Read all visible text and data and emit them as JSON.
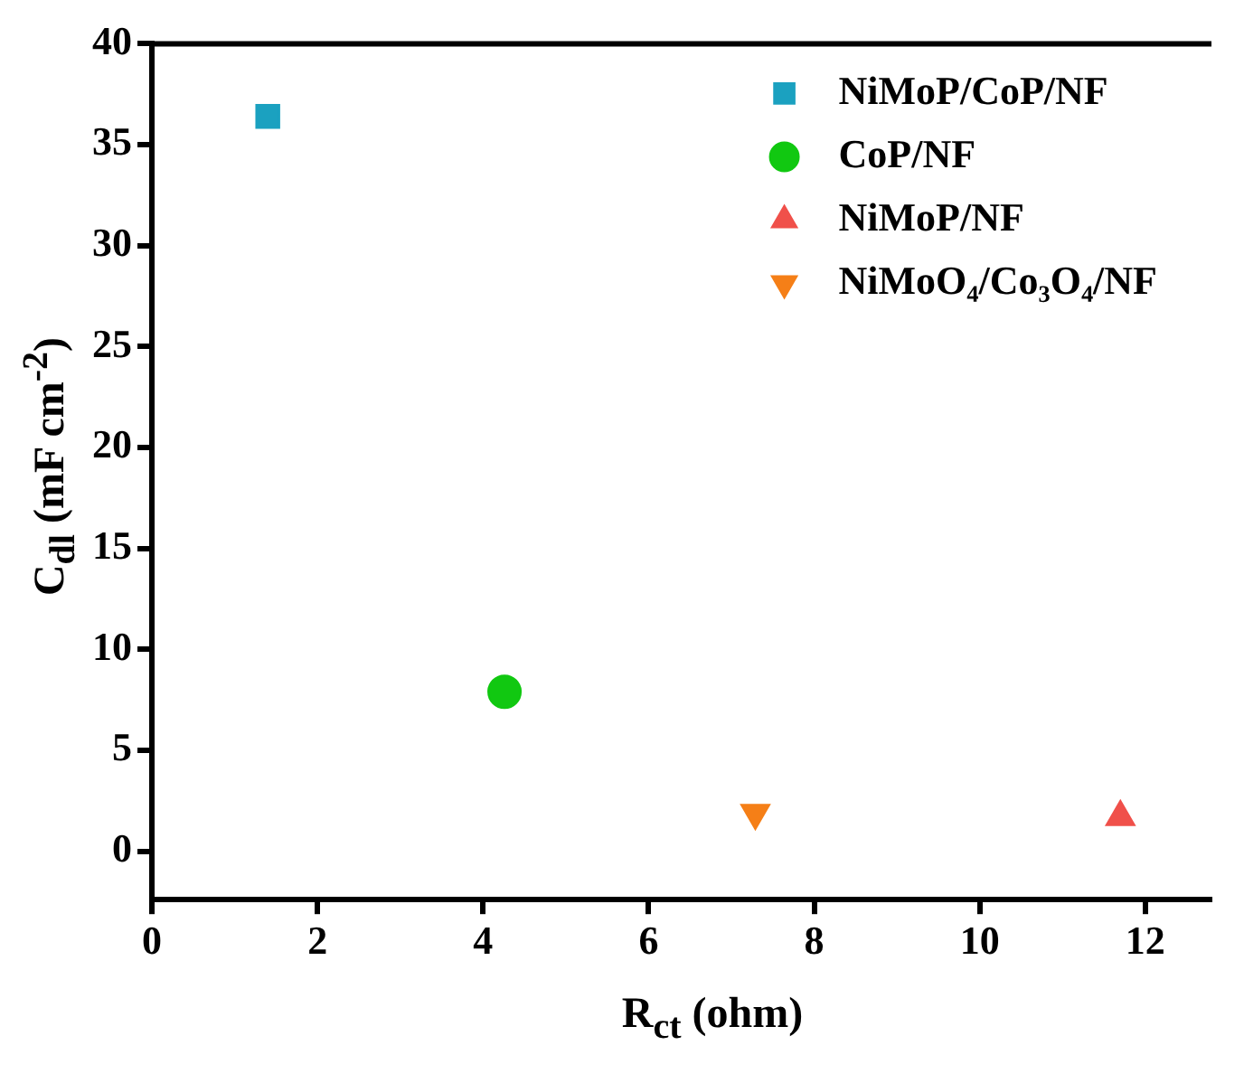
{
  "chart_data": {
    "type": "scatter",
    "xlabel": "R$_{ct}$ (ohm)",
    "ylabel": "C$_{dl}$ (mF cm$^{-2}$)",
    "xlim": [
      0,
      12.8
    ],
    "xticks": [
      0,
      2,
      4,
      6,
      8,
      10,
      12
    ],
    "ylim": [
      -2.4,
      40
    ],
    "yticks": [
      0,
      5,
      10,
      15,
      20,
      25,
      30,
      35,
      40
    ],
    "grid": false,
    "legend": "top right",
    "series": [
      {
        "name": "NiMoP/CoP/NF",
        "color": "#1ba1c0",
        "marker": "square",
        "x": [
          1.4
        ],
        "values": [
          36.4
        ]
      },
      {
        "name": "CoP/NF",
        "color": "#11c811",
        "marker": "circle",
        "x": [
          4.26
        ],
        "values": [
          7.9
        ]
      },
      {
        "name": "NiMoP/NF",
        "color": "#f0504a",
        "marker": "triangle",
        "x": [
          11.7
        ],
        "values": [
          1.7
        ]
      },
      {
        "name": "NiMoO₄/Co₃O₄/NF",
        "color": "#f57f17",
        "marker": "triangle_down",
        "x": [
          7.29
        ],
        "values": [
          1.9
        ]
      }
    ]
  }
}
